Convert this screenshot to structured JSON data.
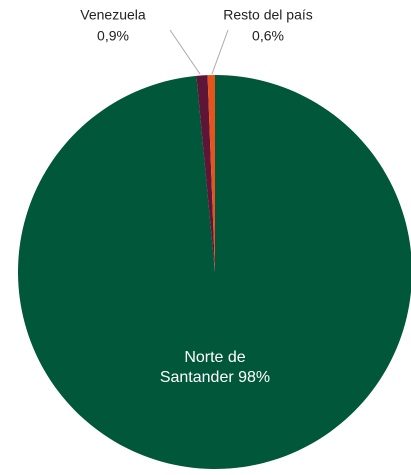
{
  "chart_data": {
    "type": "pie",
    "categories": [
      "Norte de Santander",
      "Venezuela",
      "Resto del país"
    ],
    "values": [
      98,
      0.9,
      0.6
    ],
    "value_labels": [
      "98%",
      "0,9%",
      "0,6%"
    ],
    "colors": [
      "#00573a",
      "#5e1638",
      "#e4541c"
    ]
  }
}
